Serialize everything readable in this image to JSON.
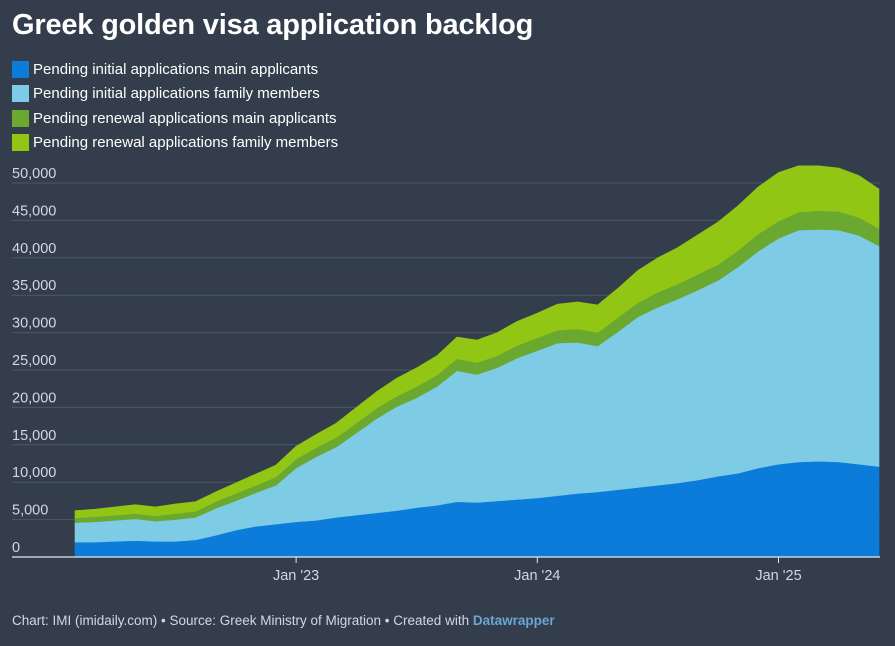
{
  "chart_data": {
    "type": "area",
    "title": "Greek golden visa application backlog",
    "stacked": true,
    "x": [
      "2022-02",
      "2022-03",
      "2022-04",
      "2022-05",
      "2022-06",
      "2022-07",
      "2022-08",
      "2022-09",
      "2022-10",
      "2022-11",
      "2022-12",
      "2023-01",
      "2023-02",
      "2023-03",
      "2023-04",
      "2023-05",
      "2023-06",
      "2023-07",
      "2023-08",
      "2023-09",
      "2023-10",
      "2023-11",
      "2023-12",
      "2024-01",
      "2024-02",
      "2024-03",
      "2024-04",
      "2024-05",
      "2024-06",
      "2024-07",
      "2024-08",
      "2024-09",
      "2024-10",
      "2024-11",
      "2024-12",
      "2025-01",
      "2025-02",
      "2025-03",
      "2025-04",
      "2025-05",
      "2025-06"
    ],
    "x_ticks": [
      {
        "x": "2023-01",
        "label": "Jan '23"
      },
      {
        "x": "2024-01",
        "label": "Jan '24"
      },
      {
        "x": "2025-01",
        "label": "Jan '25"
      }
    ],
    "series": [
      {
        "name": "Pending initial applications main applicants",
        "color": "#0b7cda",
        "values": [
          2000,
          2000,
          2100,
          2200,
          2100,
          2100,
          2300,
          2900,
          3600,
          4100,
          4400,
          4700,
          4900,
          5300,
          5600,
          5900,
          6200,
          6600,
          6900,
          7400,
          7300,
          7500,
          7700,
          7900,
          8200,
          8500,
          8700,
          9000,
          9300,
          9600,
          9900,
          10300,
          10800,
          11200,
          11900,
          12400,
          12700,
          12800,
          12700,
          12400,
          12100
        ]
      },
      {
        "name": "Pending initial applications family members",
        "color": "#7ecbe6",
        "values": [
          2600,
          2700,
          2800,
          2900,
          2700,
          2900,
          3000,
          3600,
          3900,
          4500,
          5200,
          7200,
          8500,
          9400,
          11000,
          12600,
          13900,
          14700,
          15900,
          17500,
          17100,
          17800,
          18900,
          19700,
          20400,
          20200,
          19500,
          21100,
          22800,
          23800,
          24600,
          25400,
          26200,
          27600,
          29000,
          30200,
          31000,
          31000,
          31000,
          30600,
          29500
        ]
      },
      {
        "name": "Pending renewal applications main applicants",
        "color": "#6aa830",
        "values": [
          600,
          700,
          700,
          700,
          700,
          800,
          800,
          900,
          1000,
          1000,
          1100,
          1200,
          1200,
          1300,
          1300,
          1400,
          1400,
          1500,
          1500,
          1600,
          1600,
          1600,
          1700,
          1700,
          1700,
          1800,
          1800,
          1900,
          1900,
          2000,
          2000,
          2100,
          2100,
          2200,
          2300,
          2300,
          2400,
          2500,
          2500,
          2400,
          2300
        ]
      },
      {
        "name": "Pending renewal applications family members",
        "color": "#91c614",
        "values": [
          1000,
          1000,
          1100,
          1200,
          1200,
          1300,
          1300,
          1300,
          1400,
          1500,
          1600,
          1700,
          1800,
          1900,
          2100,
          2200,
          2400,
          2500,
          2600,
          2900,
          3000,
          3100,
          3200,
          3300,
          3500,
          3600,
          3700,
          3900,
          4300,
          4600,
          4900,
          5300,
          5700,
          6000,
          6300,
          6500,
          6200,
          6000,
          5800,
          5600,
          5300
        ]
      }
    ],
    "yticks": [
      0,
      5000,
      10000,
      15000,
      20000,
      25000,
      30000,
      35000,
      40000,
      45000,
      50000
    ],
    "ylim": [
      0,
      53000
    ],
    "grid": true,
    "legend_position": "top-left",
    "y_format": "comma"
  },
  "footer": {
    "text": "Chart: IMI (imidaily.com) • Source: Greek Ministry of Migration • Created with ",
    "link": "Datawrapper"
  }
}
